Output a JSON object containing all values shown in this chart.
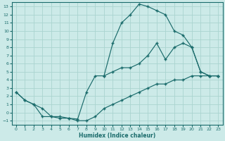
{
  "xlabel": "Humidex (Indice chaleur)",
  "bg_color": "#cceae8",
  "grid_color": "#aad4d0",
  "line_color": "#1a6b6b",
  "xlim": [
    -0.5,
    23.5
  ],
  "ylim": [
    -1.5,
    13.5
  ],
  "xticks": [
    0,
    1,
    2,
    3,
    4,
    5,
    6,
    7,
    8,
    9,
    10,
    11,
    12,
    13,
    14,
    15,
    16,
    17,
    18,
    19,
    20,
    21,
    22,
    23
  ],
  "yticks": [
    -1,
    0,
    1,
    2,
    3,
    4,
    5,
    6,
    7,
    8,
    9,
    10,
    11,
    12,
    13
  ],
  "line_upper_x": [
    10,
    11,
    12,
    13,
    14,
    15,
    16,
    17,
    18,
    19,
    20,
    21,
    22,
    23
  ],
  "line_upper_y": [
    4.5,
    8.5,
    11.0,
    12.0,
    13.3,
    13.0,
    12.5,
    12.0,
    10.0,
    9.5,
    8.0,
    5.0,
    4.5,
    4.5
  ],
  "line_mid_x": [
    0,
    1,
    2,
    3,
    4,
    5,
    6,
    7,
    8,
    9,
    10,
    11,
    12,
    13,
    14,
    15,
    16,
    17,
    18,
    19,
    20,
    21,
    22,
    23
  ],
  "line_mid_y": [
    2.5,
    1.5,
    1.0,
    0.5,
    -0.5,
    -0.5,
    -0.7,
    -0.8,
    2.5,
    4.5,
    4.5,
    5.0,
    5.5,
    5.5,
    6.0,
    7.0,
    8.5,
    6.5,
    8.0,
    8.5,
    8.0,
    5.0,
    4.5,
    4.5
  ],
  "line_low_x": [
    0,
    1,
    2,
    3,
    4,
    5,
    6,
    7,
    8,
    9,
    10,
    11,
    12,
    13,
    14,
    15,
    16,
    17,
    18,
    19,
    20,
    21,
    22,
    23
  ],
  "line_low_y": [
    2.5,
    1.5,
    1.0,
    -0.5,
    -0.5,
    -0.7,
    -0.7,
    -1.0,
    -1.0,
    -0.5,
    0.5,
    1.0,
    1.5,
    2.0,
    2.5,
    3.0,
    3.5,
    3.5,
    4.0,
    4.0,
    4.5,
    4.5,
    4.5,
    4.5
  ]
}
